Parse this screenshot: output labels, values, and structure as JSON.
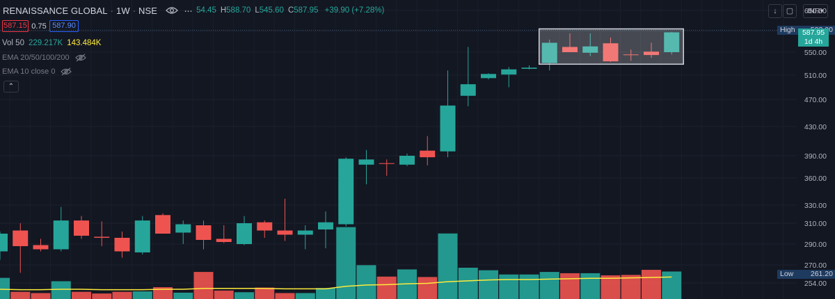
{
  "header": {
    "symbol": "RENAISSANCE GLOBAL",
    "interval": "1W",
    "exchange": "NSE",
    "ohlc_text": "54.45",
    "high_key": "H",
    "high_val": "588.70",
    "low_key": "L",
    "low_val": "545.60",
    "close_key": "C",
    "close_val": "587.95",
    "change": "+39.90 (+7.28%)"
  },
  "trade": {
    "sell": "587.15",
    "spread": "0.75",
    "buy": "587.90"
  },
  "volume": {
    "label": "Vol 50",
    "v1": "229.217K",
    "v2": "143.484K"
  },
  "indicators": [
    {
      "label": "EMA 20/50/100/200"
    },
    {
      "label": "EMA 10 close 0"
    }
  ],
  "toolbar": {
    "currency": "INR"
  },
  "markers": {
    "high_label": "High",
    "high_value": "593.00",
    "low_label": "Low",
    "low_value": "261.20",
    "last_price": "587.95",
    "countdown": "1d 4h"
  },
  "colors": {
    "up": "#26a69a",
    "down": "#ef5350",
    "background": "#131722",
    "ema": "#ffeb3b"
  },
  "chart_data": {
    "type": "candlestick",
    "y_ticks": [
      254,
      270,
      290,
      310,
      330,
      360,
      390,
      430,
      470,
      510,
      550,
      590,
      650
    ],
    "y_tick_labels": [
      "254.00",
      "270.00",
      "290.00",
      "310.00",
      "330.00",
      "360.00",
      "390.00",
      "430.00",
      "470.00",
      "510.00",
      "550.00",
      "590.00",
      "650.00"
    ],
    "candles": [
      {
        "o": 283,
        "h": 302,
        "l": 275,
        "c": 300
      },
      {
        "o": 303,
        "h": 310,
        "l": 263,
        "c": 288
      },
      {
        "o": 289,
        "h": 295,
        "l": 283,
        "c": 285
      },
      {
        "o": 285,
        "h": 328,
        "l": 283,
        "c": 313
      },
      {
        "o": 313,
        "h": 318,
        "l": 295,
        "c": 298
      },
      {
        "o": 297,
        "h": 312,
        "l": 288,
        "c": 296
      },
      {
        "o": 296,
        "h": 302,
        "l": 277,
        "c": 283
      },
      {
        "o": 282,
        "h": 318,
        "l": 280,
        "c": 313
      },
      {
        "o": 319,
        "h": 321,
        "l": 300,
        "c": 300
      },
      {
        "o": 301,
        "h": 313,
        "l": 290,
        "c": 309
      },
      {
        "o": 308,
        "h": 313,
        "l": 285,
        "c": 294
      },
      {
        "o": 295,
        "h": 308,
        "l": 291,
        "c": 292
      },
      {
        "o": 290,
        "h": 318,
        "l": 289,
        "c": 310
      },
      {
        "o": 311,
        "h": 313,
        "l": 296,
        "c": 303
      },
      {
        "o": 303,
        "h": 337,
        "l": 293,
        "c": 299
      },
      {
        "o": 299,
        "h": 308,
        "l": 285,
        "c": 303
      },
      {
        "o": 304,
        "h": 323,
        "l": 286,
        "c": 311
      },
      {
        "o": 309,
        "h": 388,
        "l": 307,
        "c": 386
      },
      {
        "o": 378,
        "h": 398,
        "l": 353,
        "c": 385
      },
      {
        "o": 380,
        "h": 385,
        "l": 363,
        "c": 379
      },
      {
        "o": 378,
        "h": 393,
        "l": 376,
        "c": 390
      },
      {
        "o": 397,
        "h": 417,
        "l": 377,
        "c": 388
      },
      {
        "o": 396,
        "h": 518,
        "l": 388,
        "c": 461
      },
      {
        "o": 476,
        "h": 560,
        "l": 460,
        "c": 495
      },
      {
        "o": 505,
        "h": 513,
        "l": 503,
        "c": 512
      },
      {
        "o": 511,
        "h": 524,
        "l": 490,
        "c": 520
      },
      {
        "o": 521,
        "h": 527,
        "l": 520,
        "c": 523
      },
      {
        "o": 531,
        "h": 574,
        "l": 518,
        "c": 568
      },
      {
        "o": 560,
        "h": 586,
        "l": 551,
        "c": 550
      },
      {
        "o": 549,
        "h": 586,
        "l": 543,
        "c": 561
      },
      {
        "o": 567,
        "h": 578,
        "l": 533,
        "c": 534
      },
      {
        "o": 546,
        "h": 555,
        "l": 535,
        "c": 545
      },
      {
        "o": 551,
        "h": 568,
        "l": 540,
        "c": 545
      },
      {
        "o": 550,
        "h": 589,
        "l": 546,
        "c": 588
      }
    ],
    "volume": [
      50,
      17,
      14,
      42,
      17,
      13,
      17,
      18,
      28,
      15,
      64,
      20,
      16,
      27,
      14,
      14,
      26,
      170,
      80,
      53,
      70,
      52,
      155,
      74,
      68,
      58,
      58,
      64,
      61,
      61,
      56,
      57,
      69,
      65
    ],
    "ema_volume": [
      23,
      22,
      22,
      23,
      23,
      22,
      22,
      22,
      23,
      23,
      25,
      25,
      25,
      25,
      24,
      24,
      24,
      30,
      33,
      34,
      36,
      37,
      41,
      43,
      45,
      46,
      46,
      47,
      48,
      49,
      49,
      50,
      51,
      52
    ],
    "ylim": [
      254,
      650
    ]
  }
}
